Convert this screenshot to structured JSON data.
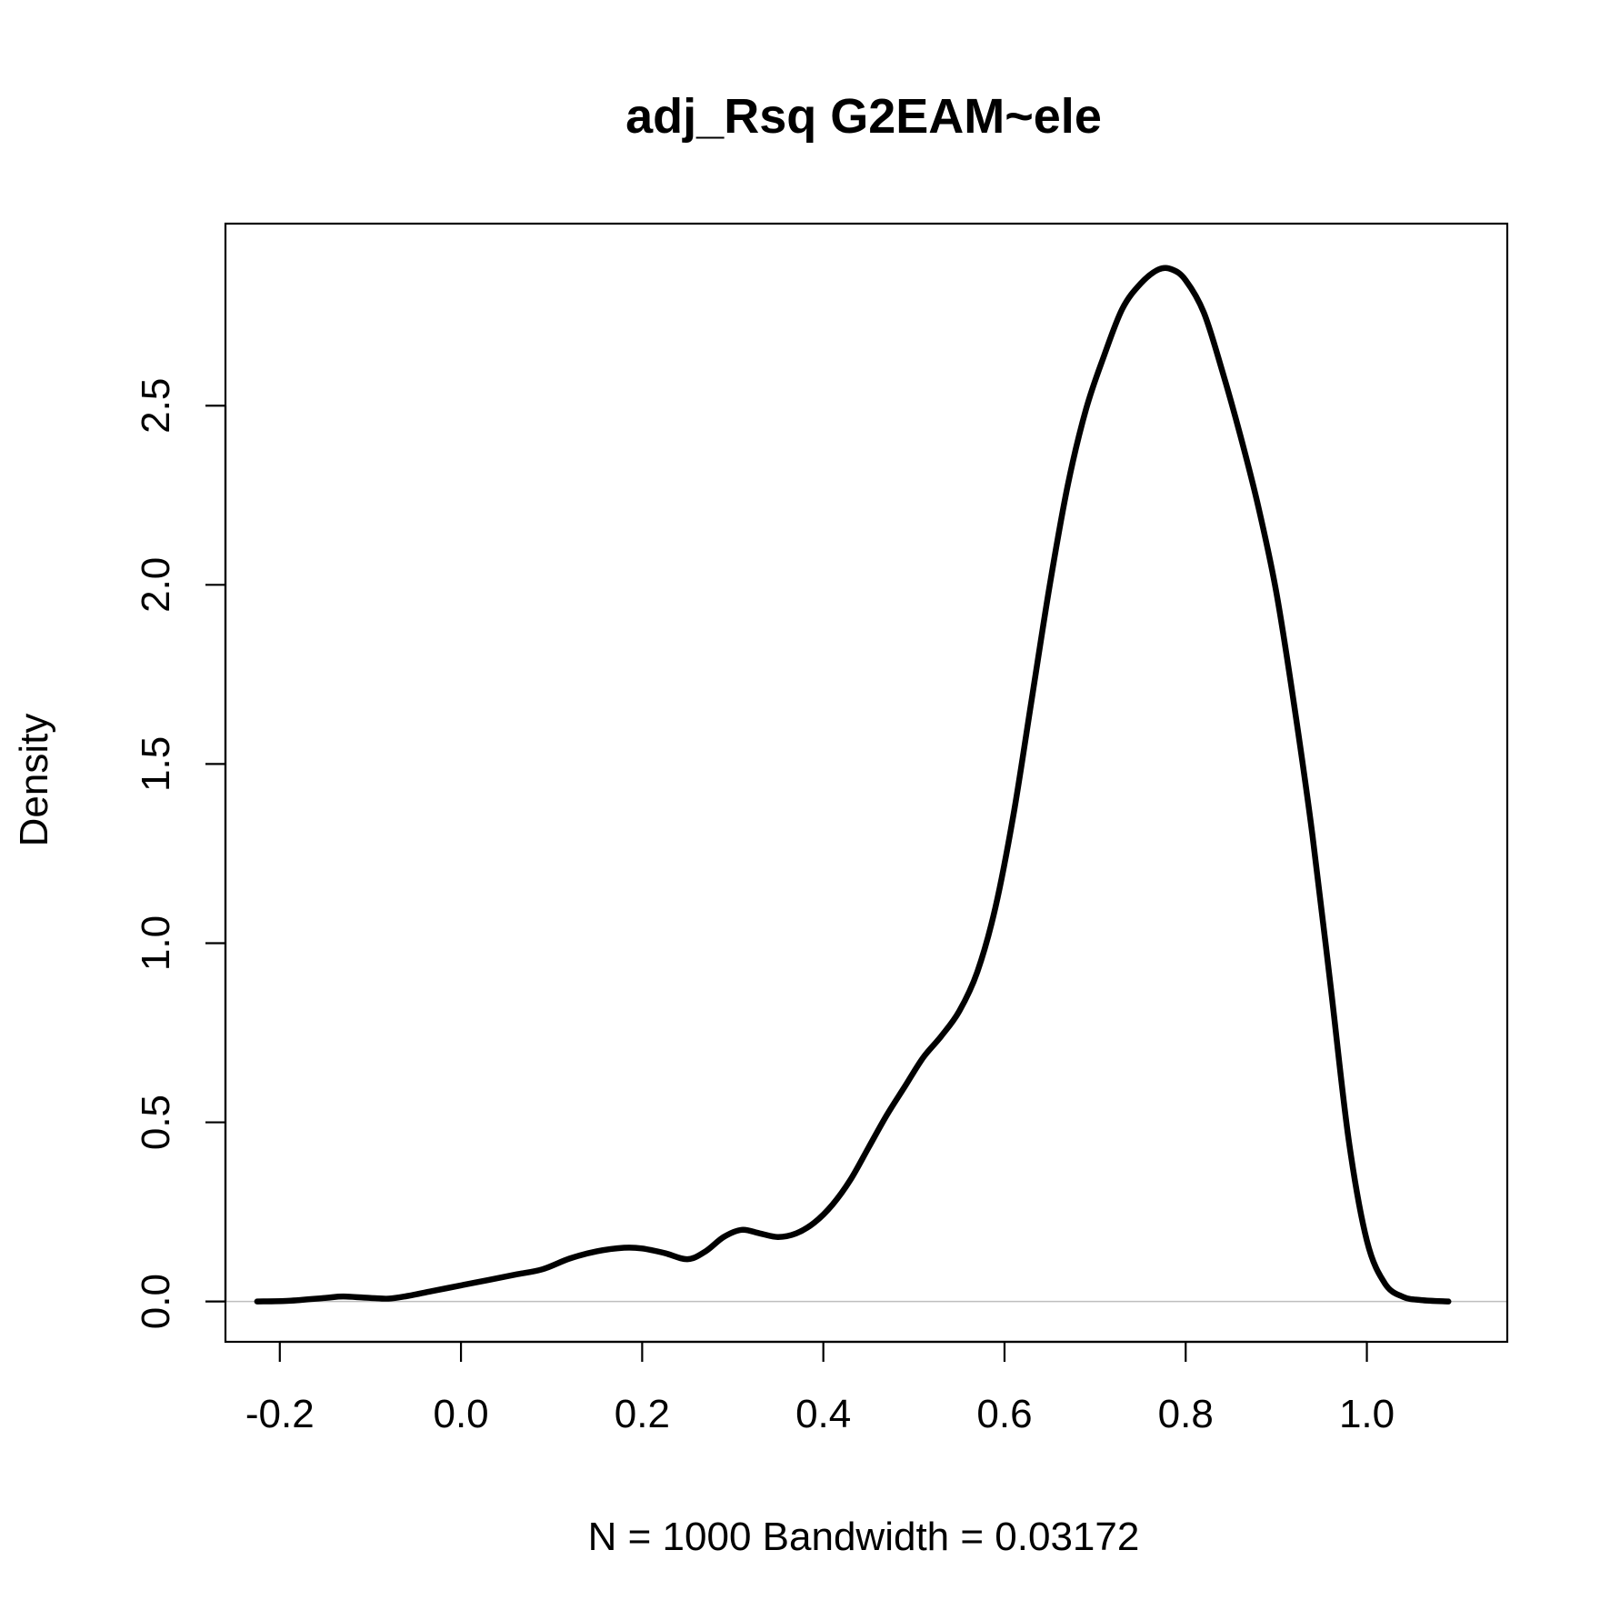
{
  "chart_data": {
    "type": "line",
    "title": "adj_Rsq G2EAM~ele",
    "xlabel": "N = 1000   Bandwidth = 0.03172",
    "ylabel": "Density",
    "xlim": [
      -0.26,
      1.155
    ],
    "ylim": [
      -0.1125,
      3.008
    ],
    "x_ticks": [
      -0.2,
      0.0,
      0.2,
      0.4,
      0.6,
      0.8,
      1.0
    ],
    "x_tick_labels": [
      "-0.2",
      "0.0",
      "0.2",
      "0.4",
      "0.6",
      "0.8",
      "1.0"
    ],
    "y_ticks": [
      0.0,
      0.5,
      1.0,
      1.5,
      2.0,
      2.5
    ],
    "y_tick_labels": [
      "0.0",
      "0.5",
      "1.0",
      "1.5",
      "2.0",
      "2.5"
    ],
    "grid": false,
    "baseline": 0,
    "baseline_color": "#bebebe",
    "line_color": "#000000",
    "series": [
      {
        "x": [
          -0.225,
          -0.19,
          -0.15,
          -0.13,
          -0.1,
          -0.08,
          -0.06,
          -0.03,
          0.0,
          0.03,
          0.06,
          0.09,
          0.12,
          0.15,
          0.18,
          0.2,
          0.225,
          0.25,
          0.27,
          0.29,
          0.31,
          0.33,
          0.35,
          0.37,
          0.39,
          0.41,
          0.43,
          0.45,
          0.47,
          0.49,
          0.51,
          0.53,
          0.55,
          0.57,
          0.59,
          0.61,
          0.63,
          0.65,
          0.67,
          0.69,
          0.71,
          0.73,
          0.75,
          0.77,
          0.785,
          0.8,
          0.82,
          0.84,
          0.86,
          0.88,
          0.9,
          0.92,
          0.94,
          0.96,
          0.98,
          1.0,
          1.02,
          1.04,
          1.06,
          1.09
        ],
        "y": [
          0.0,
          0.002,
          0.01,
          0.014,
          0.01,
          0.008,
          0.015,
          0.03,
          0.045,
          0.06,
          0.075,
          0.09,
          0.12,
          0.14,
          0.15,
          0.148,
          0.135,
          0.118,
          0.14,
          0.18,
          0.2,
          0.19,
          0.18,
          0.19,
          0.22,
          0.27,
          0.34,
          0.43,
          0.52,
          0.6,
          0.68,
          0.74,
          0.81,
          0.92,
          1.1,
          1.36,
          1.68,
          2.0,
          2.28,
          2.49,
          2.64,
          2.77,
          2.84,
          2.88,
          2.88,
          2.85,
          2.76,
          2.6,
          2.42,
          2.22,
          1.98,
          1.66,
          1.3,
          0.88,
          0.45,
          0.17,
          0.05,
          0.013,
          0.004,
          0.0
        ]
      }
    ]
  }
}
